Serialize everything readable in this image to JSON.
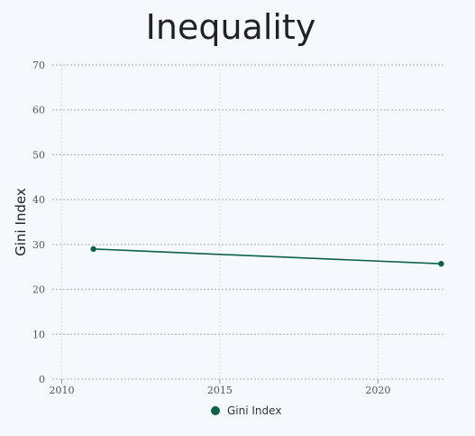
{
  "chart_data": {
    "type": "line",
    "title": "Inequality",
    "xlabel": "",
    "ylabel": "Gini Index",
    "xlim": [
      2009.7,
      2022.1
    ],
    "ylim": [
      0,
      70
    ],
    "xticks": [
      2010,
      2015,
      2020
    ],
    "yticks": [
      0,
      10,
      20,
      30,
      40,
      50,
      60,
      70
    ],
    "grid": true,
    "legend_position": "bottom",
    "series": [
      {
        "name": "Gini Index",
        "color": "#0b6148",
        "x": [
          2011,
          2022
        ],
        "y": [
          29,
          25.7
        ]
      }
    ]
  }
}
